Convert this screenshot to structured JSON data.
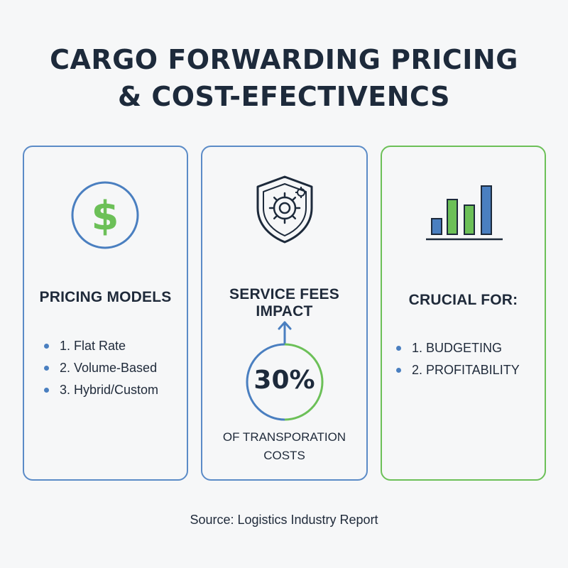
{
  "title": {
    "line1": "CARGO FORWARDING PRICING",
    "line2": "& COST-EFECTIVENCS"
  },
  "cards": [
    {
      "icon": "dollar-circle-icon",
      "heading": "PRICING MODELS",
      "items": [
        "1. Flat Rate",
        "2. Volume-Based",
        "3. Hybrid/Custom"
      ]
    },
    {
      "icon": "shield-gear-icon",
      "heading": "SERVICE FEES IMPACT",
      "stat": {
        "value": "30%",
        "caption_line1": "OF TRANSPORATION",
        "caption_line2": "COSTS"
      }
    },
    {
      "icon": "bar-chart-icon",
      "heading": "CRUCIAL FOR:",
      "items": [
        "1. BUDGETING",
        "2. PROFITABILITY"
      ]
    }
  ],
  "source": "Source: Logistics Industry Report",
  "colors": {
    "blue": "#4a7fc0",
    "green": "#6cc058",
    "dark": "#1d2a3b"
  }
}
